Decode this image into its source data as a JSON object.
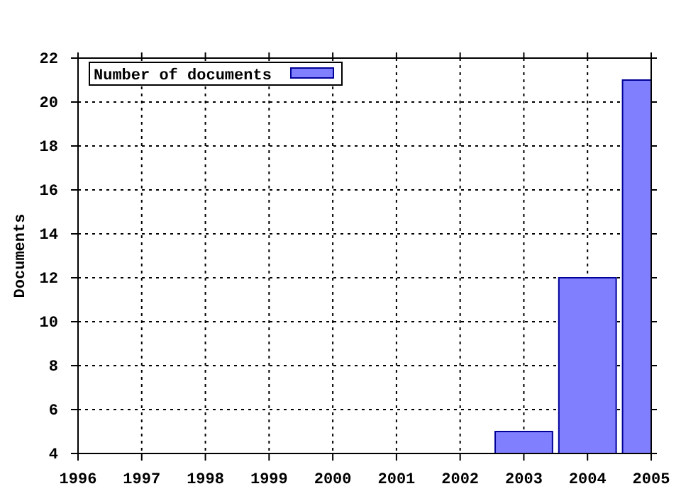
{
  "chart_data": {
    "type": "bar",
    "ylabel": "Documents",
    "x": [
      2003,
      2004,
      2005
    ],
    "series": [
      {
        "name": "Number of documents",
        "color": "#8080ff",
        "values": [
          5,
          12,
          21
        ]
      }
    ],
    "xlim": [
      1996,
      2005
    ],
    "xticks": [
      1996,
      1997,
      1998,
      1999,
      2000,
      2001,
      2002,
      2003,
      2004,
      2005
    ],
    "ylim": [
      4,
      22
    ],
    "yticks": [
      4,
      6,
      8,
      10,
      12,
      14,
      16,
      18,
      20,
      22
    ],
    "grid": true,
    "legend": "top left"
  }
}
